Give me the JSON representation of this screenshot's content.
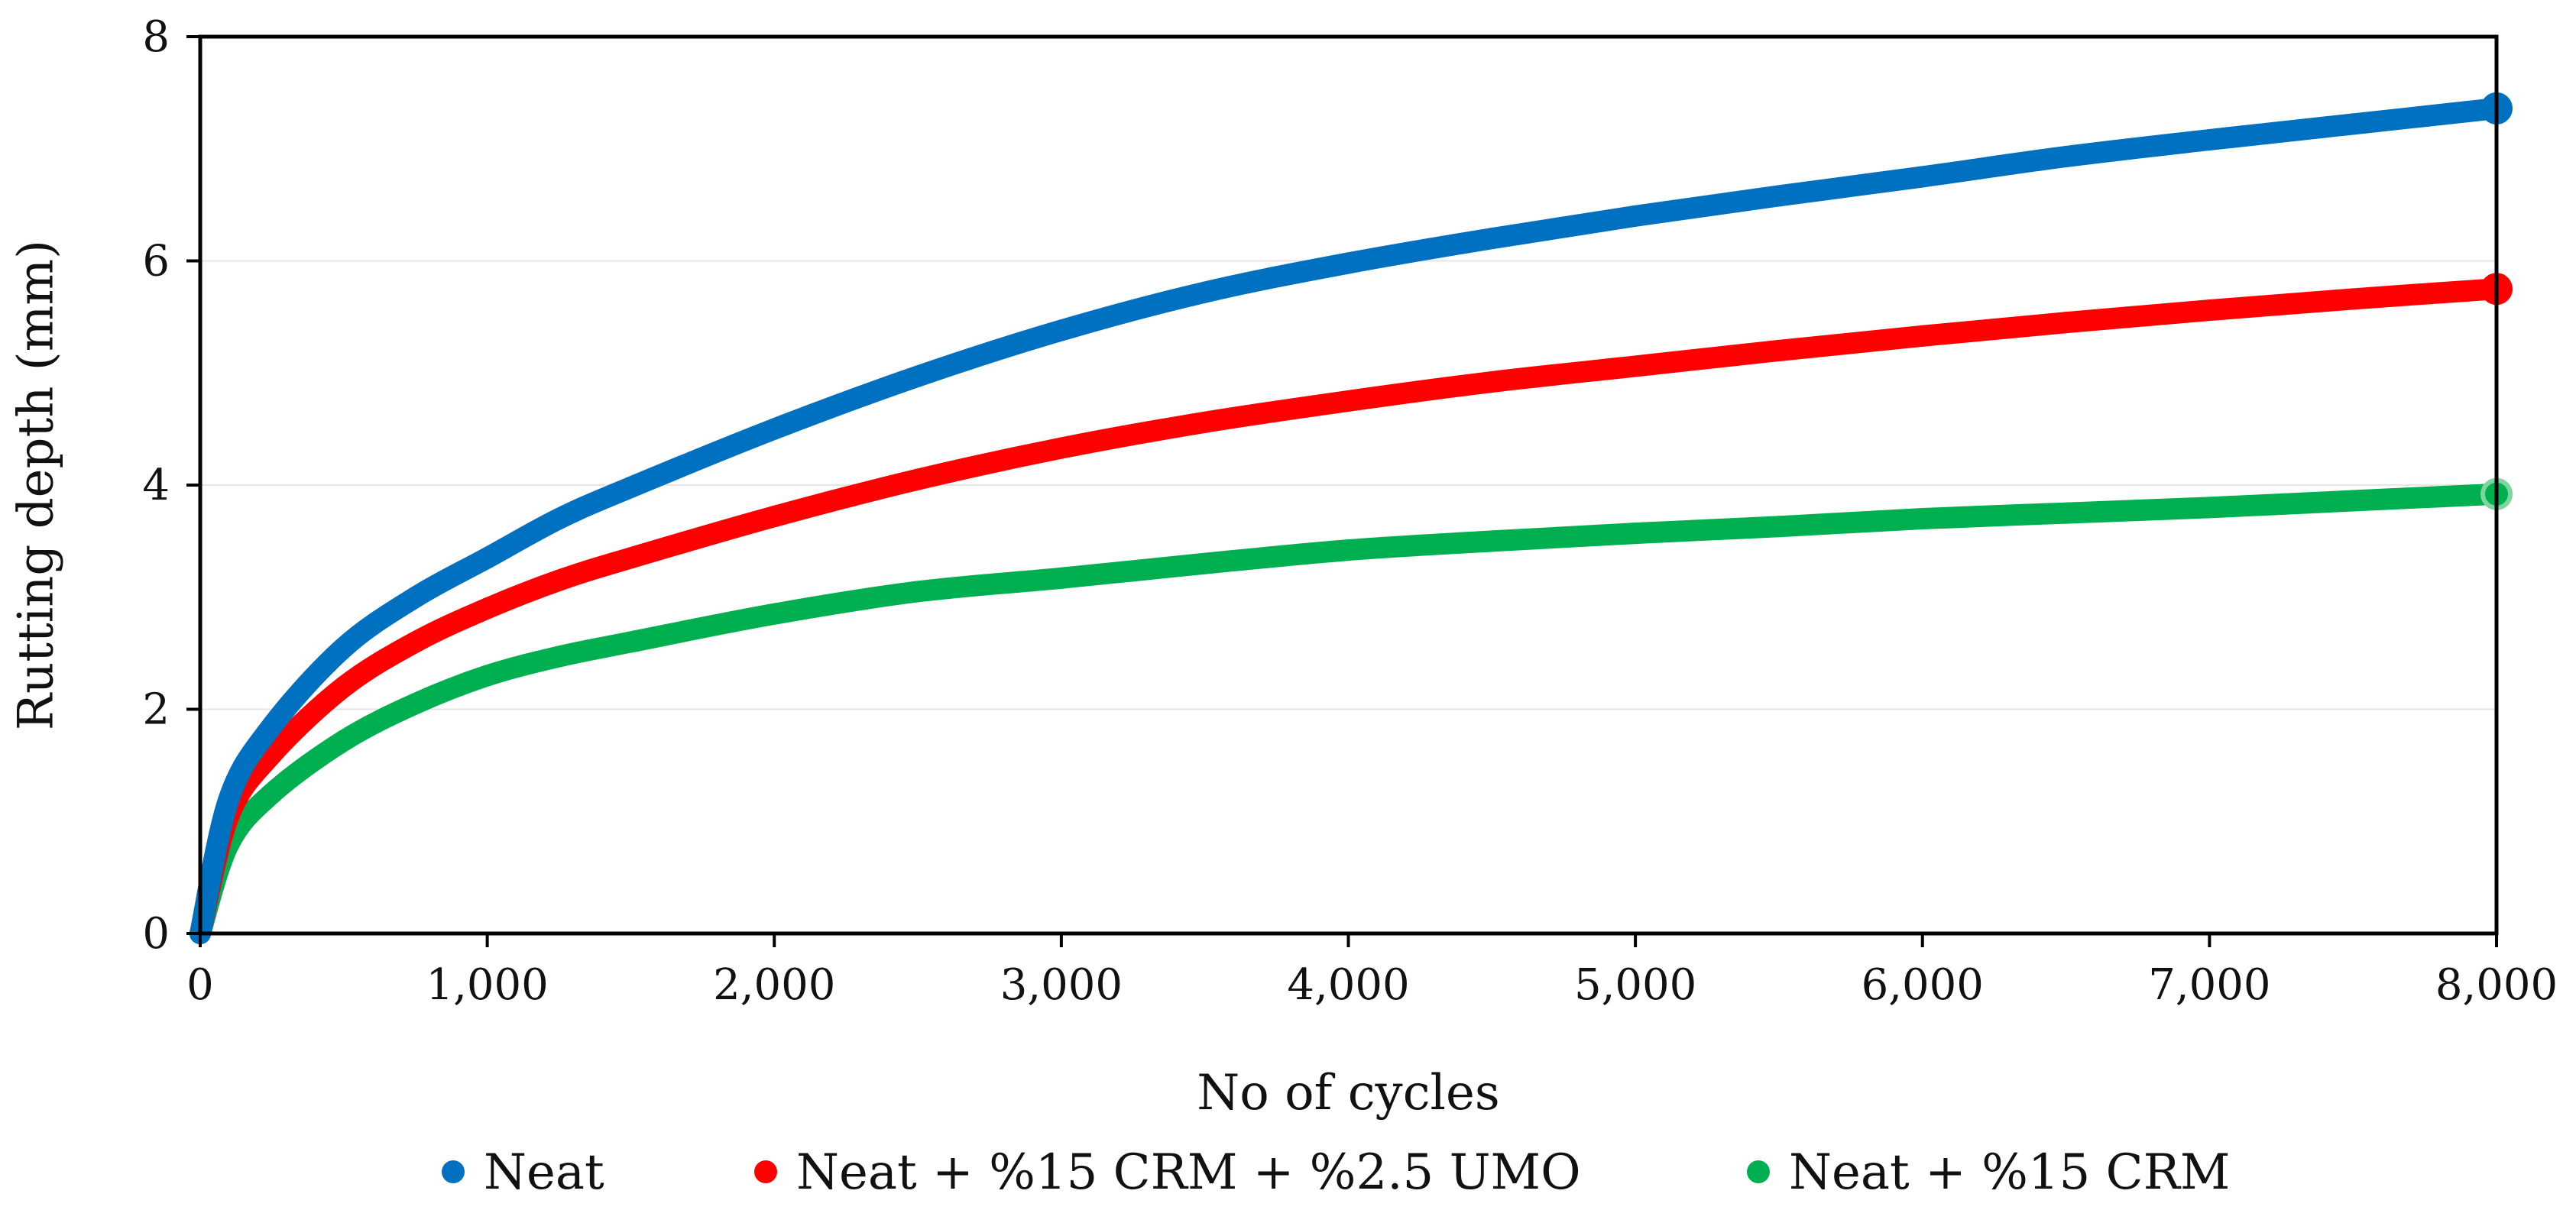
{
  "chart_data": {
    "type": "line",
    "xlabel": "No of cycles",
    "ylabel": "Rutting depth (mm)",
    "xlim": [
      0,
      8000
    ],
    "ylim": [
      0,
      8
    ],
    "x_ticks": [
      0,
      1000,
      2000,
      3000,
      4000,
      5000,
      6000,
      7000,
      8000
    ],
    "x_tick_labels": [
      "0",
      "1,000",
      "2,000",
      "3,000",
      "4,000",
      "5,000",
      "6,000",
      "7,000",
      "8,000"
    ],
    "y_ticks": [
      0,
      2,
      4,
      6,
      8
    ],
    "y_tick_labels": [
      "0",
      "2",
      "4",
      "6",
      "8"
    ],
    "grid": "horizontal",
    "legend": "bottom",
    "series": [
      {
        "name": "Neat",
        "color": "#0070C0",
        "x": [
          0,
          100,
          250,
          500,
          750,
          1000,
          1250,
          1500,
          2000,
          2500,
          3000,
          3500,
          4000,
          4500,
          5000,
          5500,
          6000,
          6500,
          7000,
          7500,
          8000
        ],
        "y": [
          0,
          1.2,
          1.85,
          2.55,
          3.0,
          3.35,
          3.7,
          3.98,
          4.5,
          4.97,
          5.38,
          5.72,
          5.98,
          6.2,
          6.4,
          6.58,
          6.75,
          6.93,
          7.08,
          7.22,
          7.36
        ]
      },
      {
        "name": "Neat + %15 CRM + %2.5 UMO",
        "color": "#FF0000",
        "x": [
          0,
          100,
          250,
          500,
          750,
          1000,
          1250,
          1500,
          2000,
          2500,
          3000,
          3500,
          4000,
          4500,
          5000,
          5500,
          6000,
          6500,
          7000,
          7500,
          8000
        ],
        "y": [
          0,
          1.05,
          1.6,
          2.2,
          2.6,
          2.9,
          3.15,
          3.35,
          3.72,
          4.05,
          4.33,
          4.56,
          4.75,
          4.92,
          5.06,
          5.2,
          5.33,
          5.45,
          5.56,
          5.66,
          5.75
        ]
      },
      {
        "name": "Neat + %15 CRM",
        "color": "#00B050",
        "x": [
          0,
          100,
          250,
          500,
          750,
          1000,
          1250,
          1500,
          2000,
          2500,
          3000,
          3500,
          4000,
          4500,
          5000,
          5500,
          6000,
          6500,
          7000,
          7500,
          8000
        ],
        "y": [
          0,
          0.8,
          1.25,
          1.72,
          2.05,
          2.3,
          2.47,
          2.6,
          2.85,
          3.05,
          3.17,
          3.3,
          3.42,
          3.5,
          3.57,
          3.63,
          3.7,
          3.75,
          3.8,
          3.86,
          3.92
        ]
      }
    ]
  }
}
